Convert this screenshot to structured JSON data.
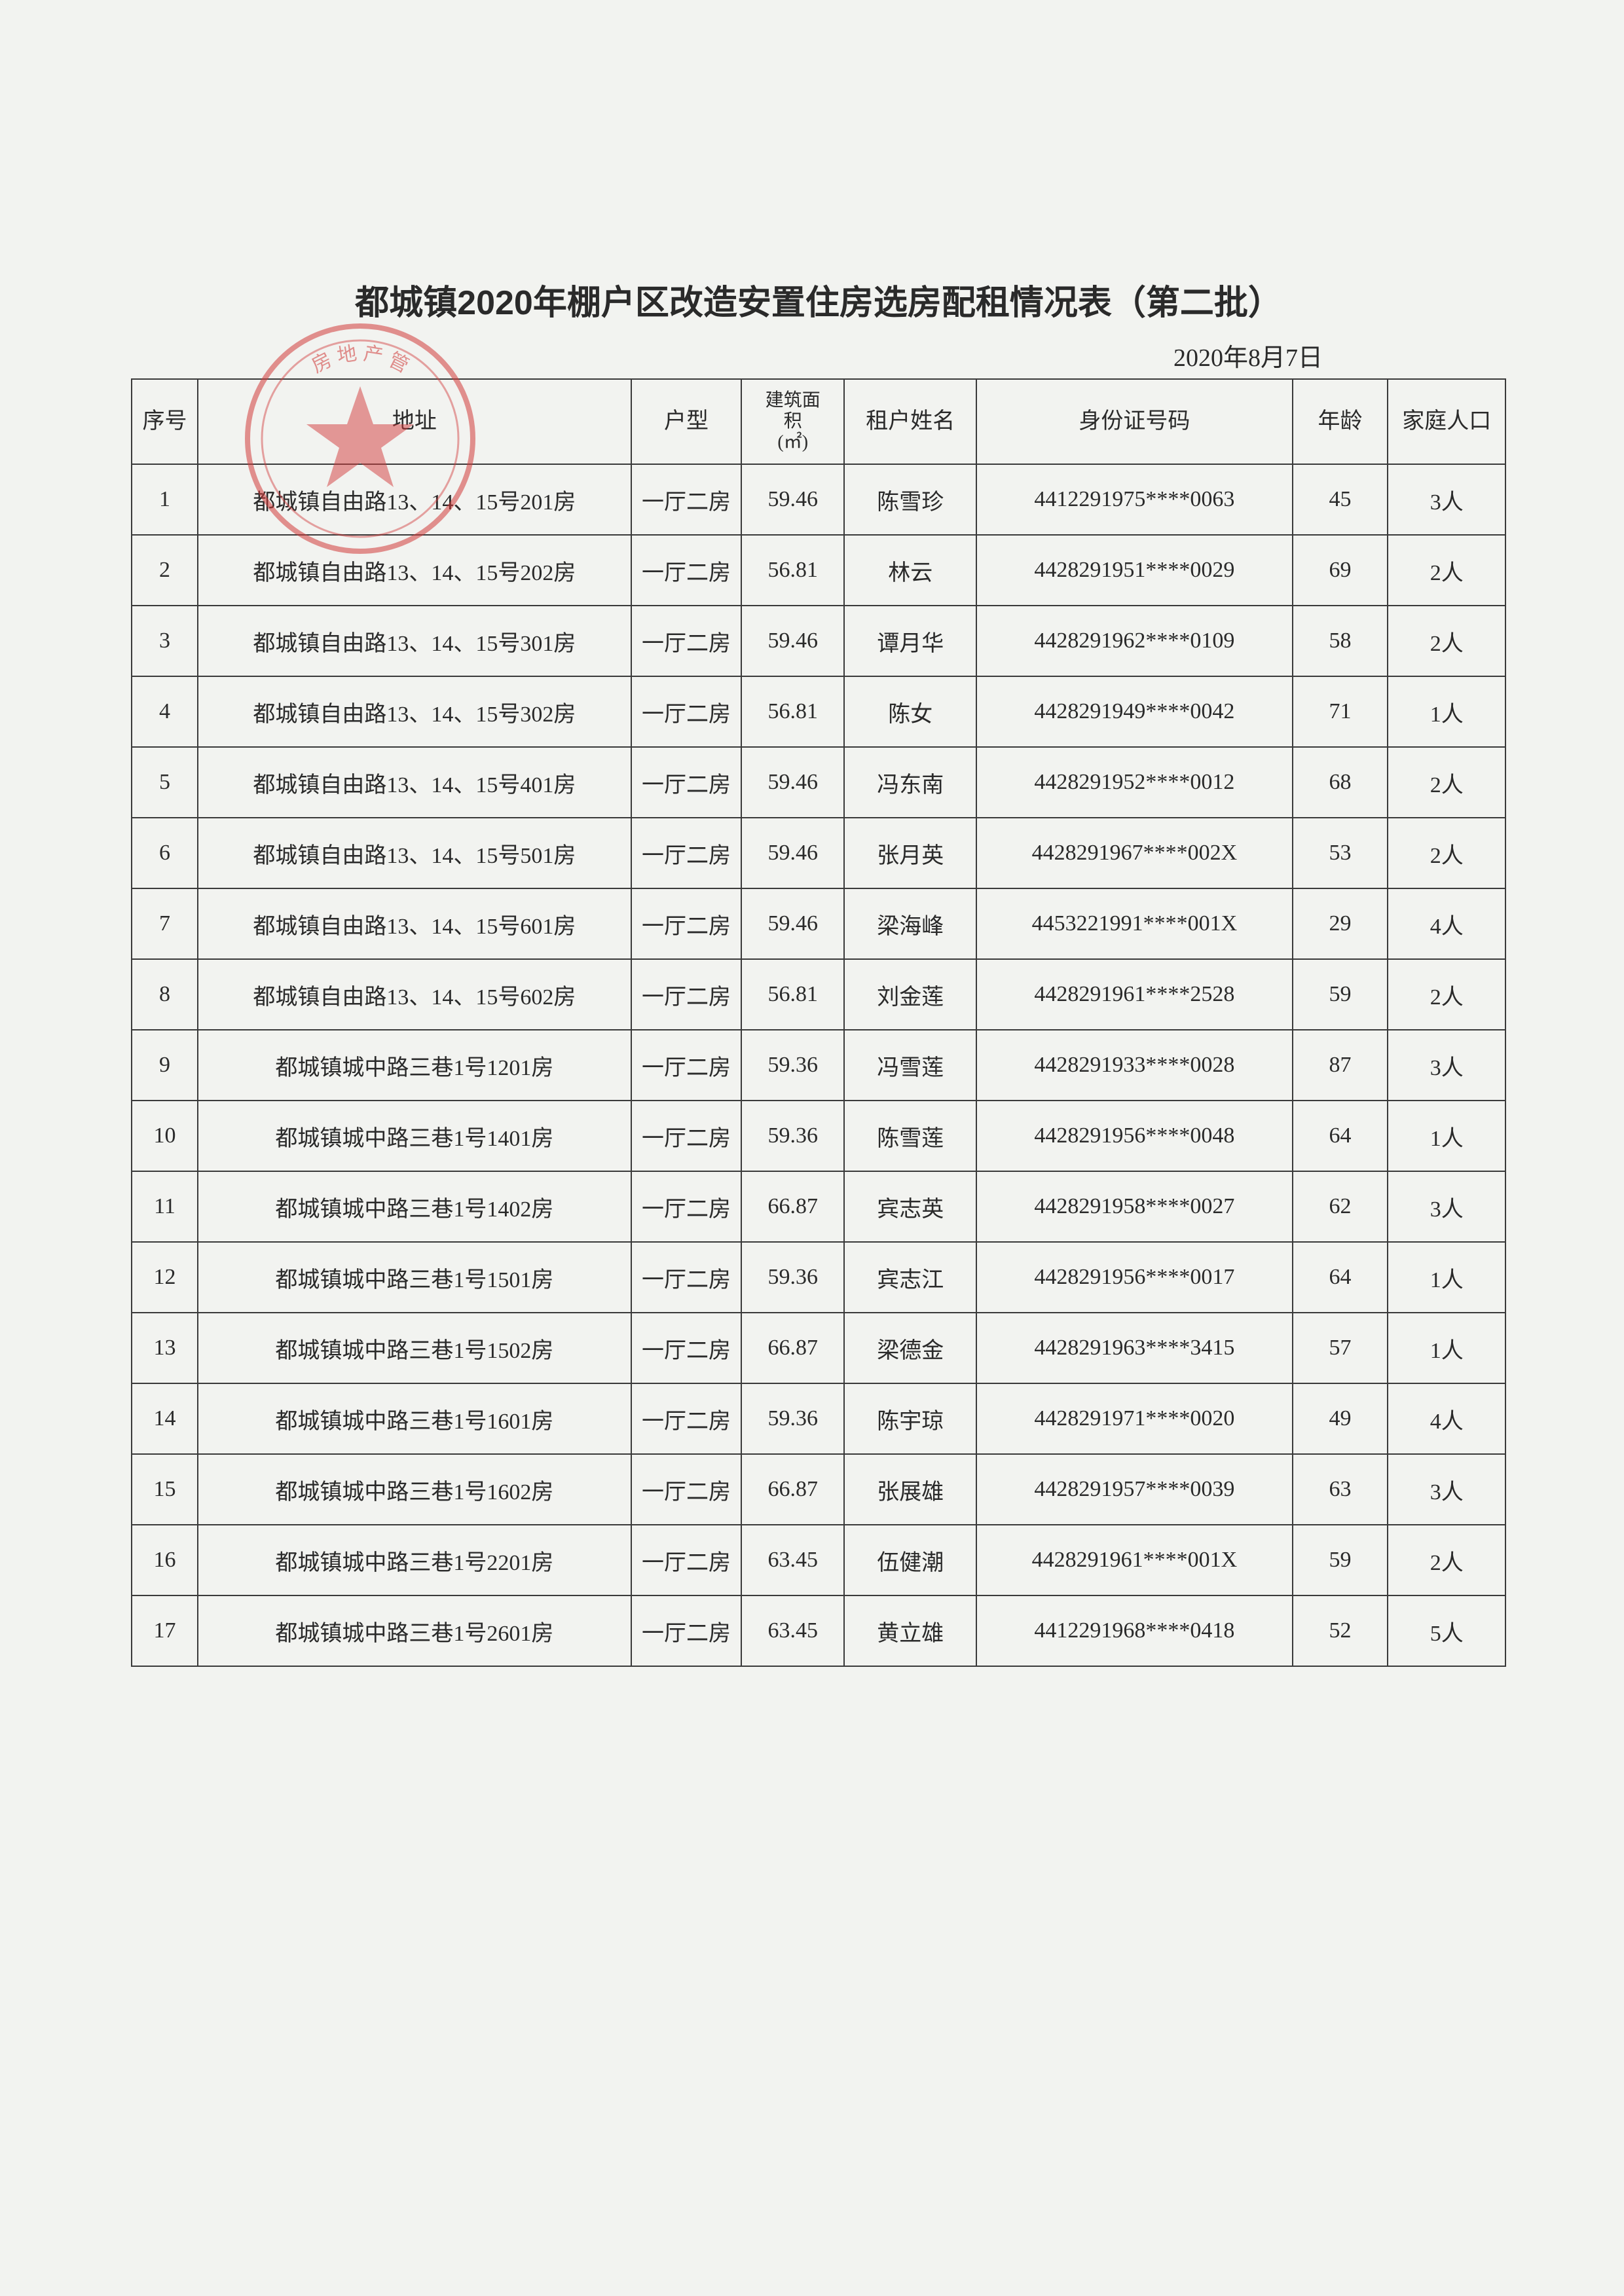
{
  "title": "都城镇2020年棚户区改造安置住房选房配租情况表（第二批）",
  "date": "2020年8月7日",
  "columns": {
    "seq": "序号",
    "address": "地址",
    "type": "户型",
    "area": "建筑面\n积\n(㎡)",
    "tenant": "租户姓名",
    "idnum": "身份证号码",
    "age": "年龄",
    "population": "家庭人口"
  },
  "rows": [
    {
      "seq": "1",
      "address": "都城镇自由路13、14、15号201房",
      "type": "一厅二房",
      "area": "59.46",
      "tenant": "陈雪珍",
      "idnum": "4412291975****0063",
      "age": "45",
      "population": "3人"
    },
    {
      "seq": "2",
      "address": "都城镇自由路13、14、15号202房",
      "type": "一厅二房",
      "area": "56.81",
      "tenant": "林云",
      "idnum": "4428291951****0029",
      "age": "69",
      "population": "2人"
    },
    {
      "seq": "3",
      "address": "都城镇自由路13、14、15号301房",
      "type": "一厅二房",
      "area": "59.46",
      "tenant": "谭月华",
      "idnum": "4428291962****0109",
      "age": "58",
      "population": "2人"
    },
    {
      "seq": "4",
      "address": "都城镇自由路13、14、15号302房",
      "type": "一厅二房",
      "area": "56.81",
      "tenant": "陈女",
      "idnum": "4428291949****0042",
      "age": "71",
      "population": "1人"
    },
    {
      "seq": "5",
      "address": "都城镇自由路13、14、15号401房",
      "type": "一厅二房",
      "area": "59.46",
      "tenant": "冯东南",
      "idnum": "4428291952****0012",
      "age": "68",
      "population": "2人"
    },
    {
      "seq": "6",
      "address": "都城镇自由路13、14、15号501房",
      "type": "一厅二房",
      "area": "59.46",
      "tenant": "张月英",
      "idnum": "4428291967****002X",
      "age": "53",
      "population": "2人"
    },
    {
      "seq": "7",
      "address": "都城镇自由路13、14、15号601房",
      "type": "一厅二房",
      "area": "59.46",
      "tenant": "梁海峰",
      "idnum": "4453221991****001X",
      "age": "29",
      "population": "4人"
    },
    {
      "seq": "8",
      "address": "都城镇自由路13、14、15号602房",
      "type": "一厅二房",
      "area": "56.81",
      "tenant": "刘金莲",
      "idnum": "4428291961****2528",
      "age": "59",
      "population": "2人"
    },
    {
      "seq": "9",
      "address": "都城镇城中路三巷1号1201房",
      "type": "一厅二房",
      "area": "59.36",
      "tenant": "冯雪莲",
      "idnum": "4428291933****0028",
      "age": "87",
      "population": "3人"
    },
    {
      "seq": "10",
      "address": "都城镇城中路三巷1号1401房",
      "type": "一厅二房",
      "area": "59.36",
      "tenant": "陈雪莲",
      "idnum": "4428291956****0048",
      "age": "64",
      "population": "1人"
    },
    {
      "seq": "11",
      "address": "都城镇城中路三巷1号1402房",
      "type": "一厅二房",
      "area": "66.87",
      "tenant": "宾志英",
      "idnum": "4428291958****0027",
      "age": "62",
      "population": "3人"
    },
    {
      "seq": "12",
      "address": "都城镇城中路三巷1号1501房",
      "type": "一厅二房",
      "area": "59.36",
      "tenant": "宾志江",
      "idnum": "4428291956****0017",
      "age": "64",
      "population": "1人"
    },
    {
      "seq": "13",
      "address": "都城镇城中路三巷1号1502房",
      "type": "一厅二房",
      "area": "66.87",
      "tenant": "梁德金",
      "idnum": "4428291963****3415",
      "age": "57",
      "population": "1人"
    },
    {
      "seq": "14",
      "address": "都城镇城中路三巷1号1601房",
      "type": "一厅二房",
      "area": "59.36",
      "tenant": "陈宇琼",
      "idnum": "4428291971****0020",
      "age": "49",
      "population": "4人"
    },
    {
      "seq": "15",
      "address": "都城镇城中路三巷1号1602房",
      "type": "一厅二房",
      "area": "66.87",
      "tenant": "张展雄",
      "idnum": "4428291957****0039",
      "age": "63",
      "population": "3人"
    },
    {
      "seq": "16",
      "address": "都城镇城中路三巷1号2201房",
      "type": "一厅二房",
      "area": "63.45",
      "tenant": "伍健潮",
      "idnum": "4428291961****001X",
      "age": "59",
      "population": "2人"
    },
    {
      "seq": "17",
      "address": "都城镇城中路三巷1号2601房",
      "type": "一厅二房",
      "area": "63.45",
      "tenant": "黄立雄",
      "idnum": "4412291968****0418",
      "age": "52",
      "population": "5人"
    }
  ],
  "stamp": {
    "outer_color": "#d13a3a",
    "star_color": "#d13a3a",
    "opacity": 0.55
  }
}
